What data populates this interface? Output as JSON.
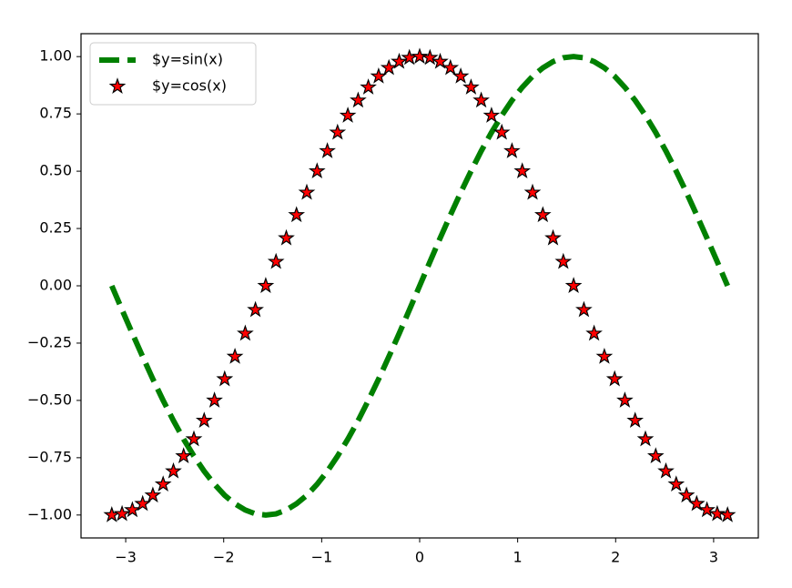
{
  "chart_data": {
    "type": "line",
    "x": [
      -3.142,
      -3.037,
      -2.932,
      -2.827,
      -2.723,
      -2.618,
      -2.513,
      -2.409,
      -2.304,
      -2.199,
      -2.094,
      -1.99,
      -1.885,
      -1.78,
      -1.676,
      -1.571,
      -1.466,
      -1.361,
      -1.257,
      -1.152,
      -1.047,
      -0.942,
      -0.838,
      -0.733,
      -0.628,
      -0.524,
      -0.419,
      -0.314,
      -0.209,
      -0.105,
      0,
      0.105,
      0.209,
      0.314,
      0.419,
      0.524,
      0.628,
      0.733,
      0.838,
      0.942,
      1.047,
      1.152,
      1.257,
      1.361,
      1.466,
      1.571,
      1.676,
      1.78,
      1.885,
      1.99,
      2.094,
      2.199,
      2.304,
      2.409,
      2.513,
      2.618,
      2.723,
      2.827,
      2.932,
      3.037,
      3.142
    ],
    "series": [
      {
        "name": "$y=sin(x)",
        "color": "#008000",
        "linestyle": "dashed",
        "values": [
          0,
          -0.105,
          -0.208,
          -0.309,
          -0.407,
          -0.5,
          -0.588,
          -0.669,
          -0.743,
          -0.809,
          -0.866,
          -0.914,
          -0.951,
          -0.978,
          -0.995,
          -1,
          -0.995,
          -0.978,
          -0.951,
          -0.914,
          -0.866,
          -0.809,
          -0.743,
          -0.669,
          -0.588,
          -0.5,
          -0.407,
          -0.309,
          -0.208,
          -0.105,
          0,
          0.105,
          0.208,
          0.309,
          0.407,
          0.5,
          0.588,
          0.669,
          0.743,
          0.809,
          0.866,
          0.914,
          0.951,
          0.978,
          0.995,
          1,
          0.995,
          0.978,
          0.951,
          0.914,
          0.866,
          0.809,
          0.743,
          0.669,
          0.588,
          0.5,
          0.407,
          0.309,
          0.208,
          0.105,
          0
        ]
      },
      {
        "name": "$y=cos(x)",
        "color": "#ff0000",
        "marker": "star",
        "values": [
          -1,
          -0.995,
          -0.978,
          -0.951,
          -0.914,
          -0.866,
          -0.809,
          -0.743,
          -0.669,
          -0.588,
          -0.5,
          -0.407,
          -0.309,
          -0.208,
          -0.105,
          0,
          0.105,
          0.208,
          0.309,
          0.407,
          0.5,
          0.588,
          0.669,
          0.743,
          0.809,
          0.866,
          0.914,
          0.951,
          0.978,
          0.995,
          1,
          0.995,
          0.978,
          0.951,
          0.914,
          0.866,
          0.809,
          0.743,
          0.669,
          0.588,
          0.5,
          0.407,
          0.309,
          0.208,
          0.105,
          0,
          -0.105,
          -0.208,
          -0.309,
          -0.407,
          -0.5,
          -0.588,
          -0.669,
          -0.743,
          -0.809,
          -0.866,
          -0.914,
          -0.951,
          -0.978,
          -0.995,
          -1
        ]
      }
    ],
    "xlim": [
      -3.456,
      3.456
    ],
    "ylim": [
      -1.1,
      1.1
    ],
    "xticks": [
      {
        "value": -3,
        "label": "−3"
      },
      {
        "value": -2,
        "label": "−2"
      },
      {
        "value": -1,
        "label": "−1"
      },
      0,
      1,
      2,
      3
    ],
    "yticks": [
      {
        "value": -1,
        "label": "−1.00"
      },
      {
        "value": -0.75,
        "label": "−0.75"
      },
      {
        "value": -0.5,
        "label": "−0.50"
      },
      {
        "value": -0.25,
        "label": "−0.25"
      },
      {
        "value": 0,
        "label": "0.00"
      },
      {
        "value": 0.25,
        "label": "0.25"
      },
      {
        "value": 0.5,
        "label": "0.50"
      },
      {
        "value": 0.75,
        "label": "0.75"
      },
      {
        "value": 1,
        "label": "1.00"
      }
    ],
    "legend": "upper left"
  }
}
